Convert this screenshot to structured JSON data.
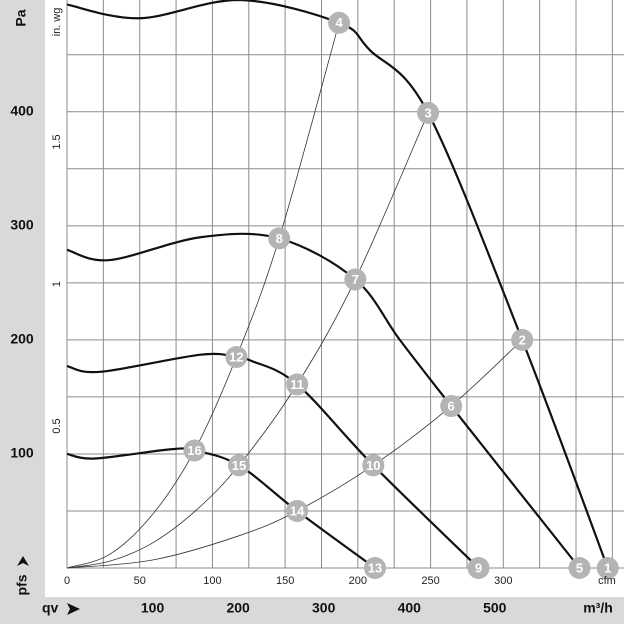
{
  "chart_data": {
    "type": "line",
    "y_label": "Pa",
    "x_label": "qv",
    "y_axis_note": "pfs",
    "x_unit": "m³/h",
    "x2_unit": "cfm",
    "y2_unit": "in. wg",
    "xlim": [
      0,
      651
    ],
    "xticks": [
      100,
      200,
      300,
      400,
      500
    ],
    "ylim": [
      0,
      498
    ],
    "yticks": [
      100,
      200,
      300,
      400
    ],
    "ygrid": [
      0,
      50,
      100,
      150,
      200,
      250,
      300,
      350,
      400,
      450
    ],
    "x2lim": [
      0,
      383
    ],
    "x2ticks": [
      0,
      50,
      100,
      150,
      200,
      250,
      300
    ],
    "x2grid": [
      0,
      25,
      50,
      75,
      100,
      125,
      150,
      175,
      200,
      225,
      250,
      275,
      300,
      325,
      350,
      375
    ],
    "y2lim": [
      0,
      2
    ],
    "y2ticks": [
      0.5,
      1,
      1.5
    ],
    "grid": true,
    "grid_color": "#8c8c8c",
    "series": [
      {
        "line_weight": "bold",
        "color": "#111111",
        "x": [
          0,
          85,
          202,
          318,
          354,
          422,
          532,
          632
        ],
        "values": [
          494,
          482,
          498,
          478,
          454,
          399,
          200,
          0
        ]
      },
      {
        "line_weight": "bold",
        "color": "#111111",
        "x": [
          0,
          50,
          156,
          248,
          337,
          389,
          449,
          599
        ],
        "values": [
          279,
          270,
          290,
          289,
          253,
          200,
          142,
          0
        ]
      },
      {
        "line_weight": "bold",
        "color": "#111111",
        "x": [
          0,
          39,
          156,
          198,
          214,
          269,
          358,
          481
        ],
        "values": [
          177,
          172,
          187,
          185,
          182,
          161,
          90,
          0
        ]
      },
      {
        "line_weight": "bold",
        "color": "#111111",
        "x": [
          0,
          33,
          120,
          149,
          201,
          269,
          360
        ],
        "values": [
          100,
          96,
          104,
          103,
          90,
          50,
          0
        ]
      },
      {
        "line_weight": "thin",
        "color": "#333333",
        "x": [
          0,
          50,
          100,
          149,
          198,
          248,
          318
        ],
        "values": [
          0,
          12,
          47,
          103,
          185,
          289,
          478
        ]
      },
      {
        "line_weight": "thin",
        "color": "#333333",
        "x": [
          0,
          50,
          100,
          150,
          201,
          269,
          337,
          422
        ],
        "values": [
          0,
          6,
          22,
          50,
          90,
          161,
          253,
          399
        ]
      },
      {
        "line_weight": "thin",
        "color": "#333333",
        "x": [
          0,
          100,
          200,
          269,
          358,
          449,
          532
        ],
        "values": [
          0,
          7,
          28,
          50,
          90,
          142,
          200
        ]
      }
    ],
    "point_color": "#b4b4b4",
    "points": [
      {
        "label": "1",
        "x": 632,
        "y": 0
      },
      {
        "label": "2",
        "x": 532,
        "y": 200
      },
      {
        "label": "3",
        "x": 422,
        "y": 399
      },
      {
        "label": "4",
        "x": 318,
        "y": 478
      },
      {
        "label": "5",
        "x": 599,
        "y": 0
      },
      {
        "label": "6",
        "x": 449,
        "y": 142
      },
      {
        "label": "7",
        "x": 337,
        "y": 253
      },
      {
        "label": "8",
        "x": 248,
        "y": 289
      },
      {
        "label": "9",
        "x": 481,
        "y": 0
      },
      {
        "label": "10",
        "x": 358,
        "y": 90
      },
      {
        "label": "11",
        "x": 269,
        "y": 161
      },
      {
        "label": "12",
        "x": 198,
        "y": 185
      },
      {
        "label": "13",
        "x": 360,
        "y": 0
      },
      {
        "label": "14",
        "x": 269,
        "y": 50
      },
      {
        "label": "15",
        "x": 201,
        "y": 90
      },
      {
        "label": "16",
        "x": 149,
        "y": 103
      }
    ]
  }
}
